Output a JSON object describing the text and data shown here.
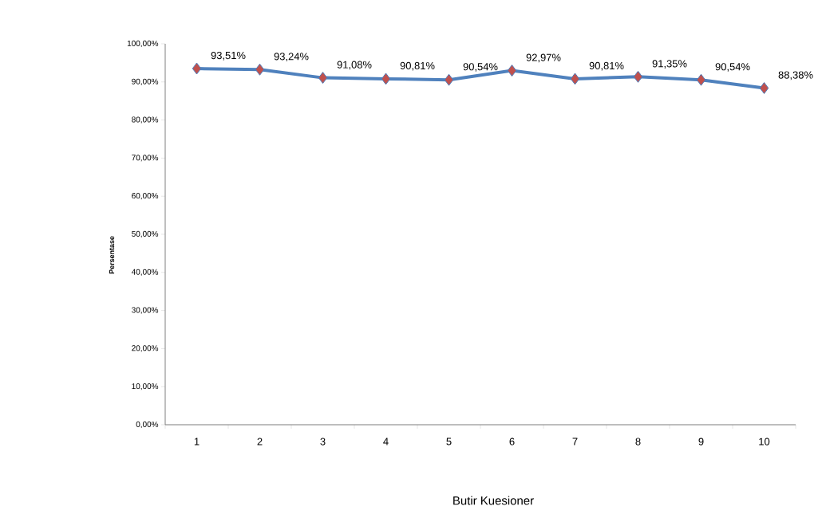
{
  "chart_data": {
    "type": "line",
    "xlabel": "Butir Kuesioner",
    "ylabel": "Persentase",
    "categories": [
      "1",
      "2",
      "3",
      "4",
      "5",
      "6",
      "7",
      "8",
      "9",
      "10"
    ],
    "values": [
      93.51,
      93.24,
      91.08,
      90.81,
      90.54,
      92.97,
      90.81,
      91.35,
      90.54,
      88.38
    ],
    "value_labels": [
      "93,51%",
      "93,24%",
      "91,08%",
      "90,81%",
      "90,54%",
      "92,97%",
      "90,81%",
      "91,35%",
      "90,54%",
      "88,38%"
    ],
    "color": "#4f81bd",
    "marker": "diamond",
    "line_style": "solid",
    "grid": false,
    "ylim": [
      0,
      100
    ],
    "yticks": [
      {
        "value": 0,
        "label": "0,00%"
      },
      {
        "value": 10,
        "label": "10,00%"
      },
      {
        "value": 20,
        "label": "20,00%"
      },
      {
        "value": 30,
        "label": "30,00%"
      },
      {
        "value": 40,
        "label": "40,00%"
      },
      {
        "value": 50,
        "label": "50,00%"
      },
      {
        "value": 60,
        "label": "60,00%"
      },
      {
        "value": 70,
        "label": "70,00%"
      },
      {
        "value": 80,
        "label": "80,00%"
      },
      {
        "value": 90,
        "label": "90,00%"
      },
      {
        "value": 100,
        "label": "100,00%"
      }
    ]
  }
}
